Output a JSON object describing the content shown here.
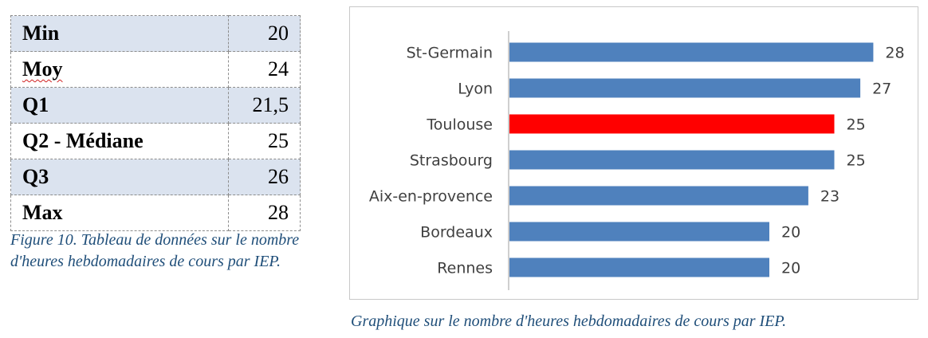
{
  "table": {
    "rows": [
      {
        "label": "Min",
        "value": "20"
      },
      {
        "label": "Moy",
        "value": "24"
      },
      {
        "label": "Q1",
        "value": "21,5"
      },
      {
        "label": "Q2 - Médiane",
        "value": "25"
      },
      {
        "label": "Q3",
        "value": "26"
      },
      {
        "label": "Max",
        "value": "28"
      }
    ],
    "caption": "Figure 10. Tableau de données sur le nombre d'heures hebdomadaires de cours par IEP."
  },
  "chart_caption": "Graphique sur le nombre d'heures hebdomadaires de cours par IEP.",
  "chart_data": {
    "type": "bar",
    "orientation": "horizontal",
    "categories": [
      "St-Germain",
      "Lyon",
      "Toulouse",
      "Strasbourg",
      "Aix-en-provence",
      "Bordeaux",
      "Rennes"
    ],
    "values": [
      28,
      27,
      25,
      25,
      23,
      20,
      20
    ],
    "colors": [
      "#4f81bd",
      "#4f81bd",
      "#ff0000",
      "#4f81bd",
      "#4f81bd",
      "#4f81bd",
      "#4f81bd"
    ],
    "highlight": "Toulouse",
    "xlim": [
      0,
      28
    ],
    "grid": false,
    "data_labels": true,
    "title": "",
    "xlabel": "",
    "ylabel": ""
  }
}
